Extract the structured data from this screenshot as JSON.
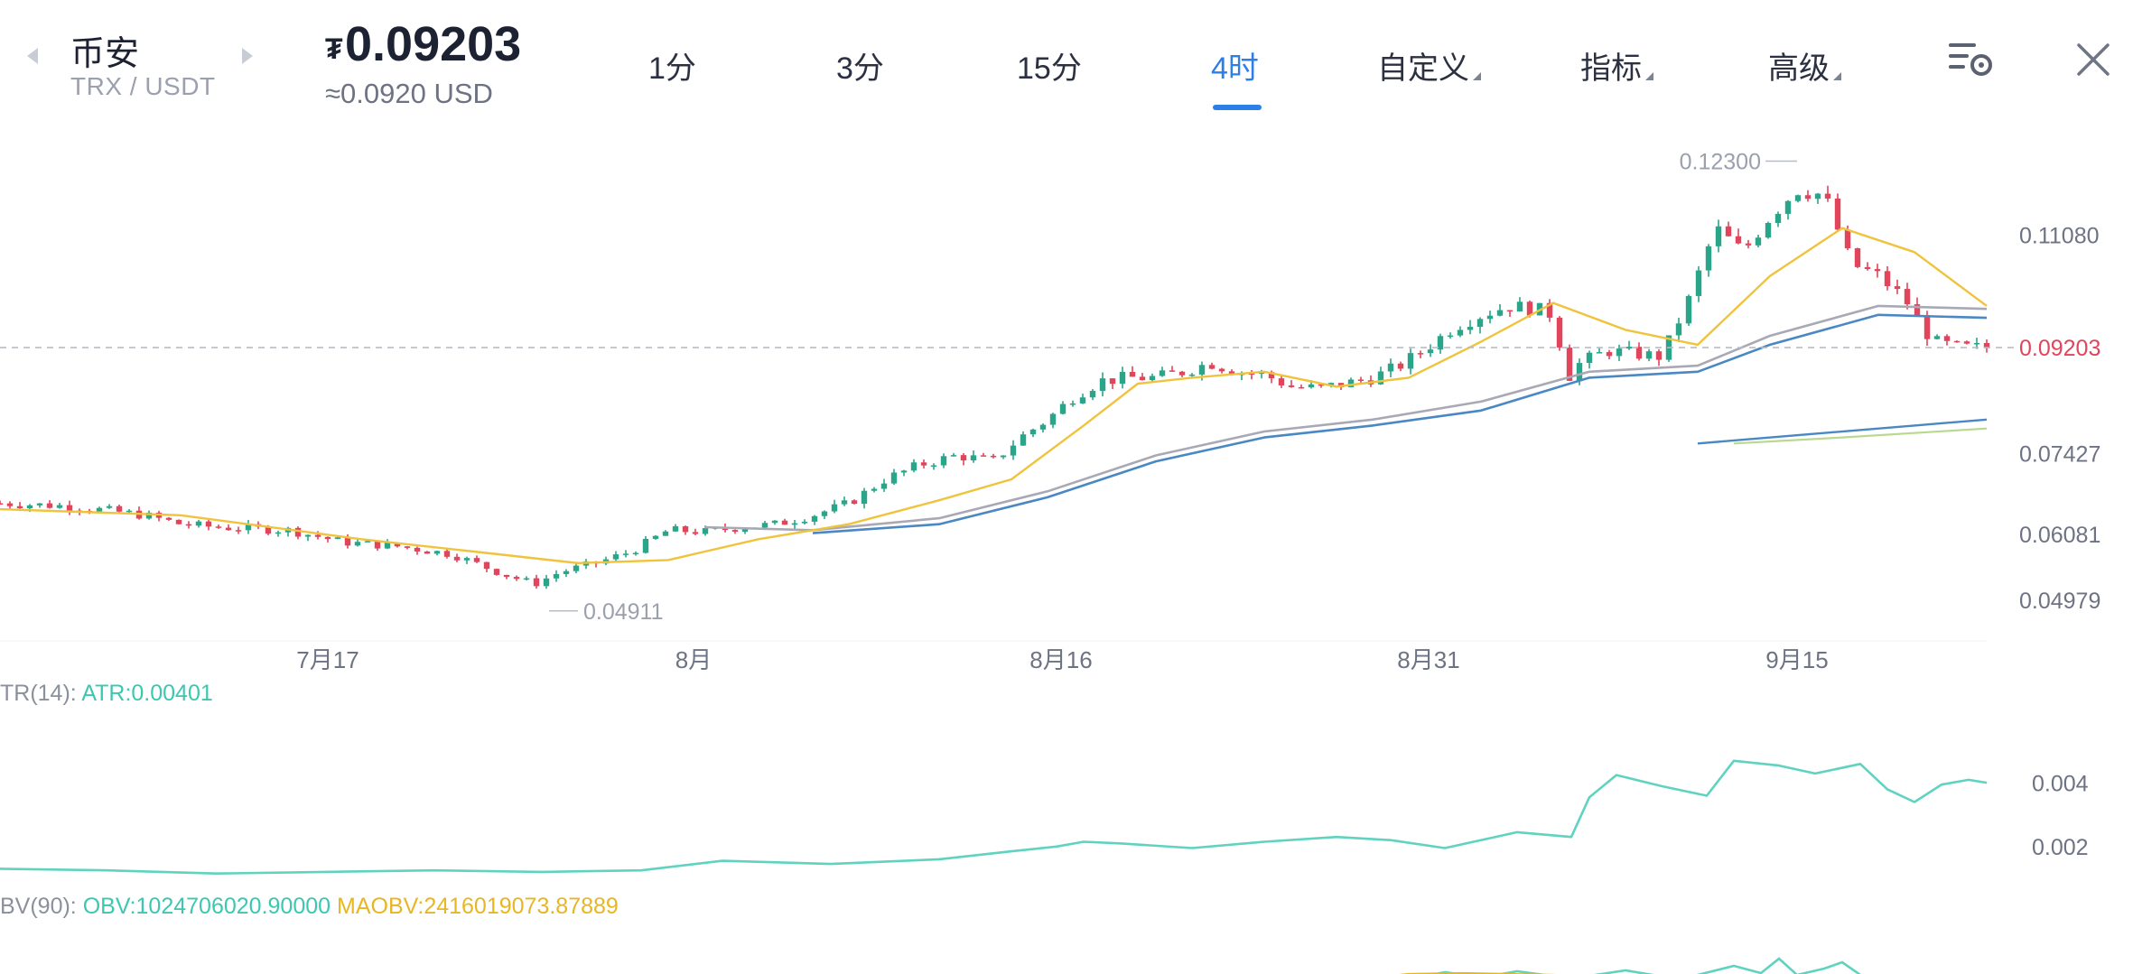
{
  "header": {
    "exchange_name": "币安",
    "pair": "TRX / USDT",
    "price_symbol": "₮",
    "price": "0.09203",
    "price_usd": "≈0.0920 USD"
  },
  "tabs": [
    {
      "label": "1分"
    },
    {
      "label": "3分"
    },
    {
      "label": "15分"
    },
    {
      "label": "4时",
      "active": true
    },
    {
      "label": "自定义"
    },
    {
      "label": "指标"
    },
    {
      "label": "高级"
    }
  ],
  "icons": {
    "left_arrow": "chevron-left-icon",
    "right_arrow": "chevron-right-icon",
    "settings": "chart-settings-icon",
    "close": "close-icon"
  },
  "colors": {
    "up": "#2ba58a",
    "down": "#e0455c",
    "ma_yellow": "#f0c33c",
    "ma_blue": "#4a88c4",
    "ma_gray": "#a9a9b6",
    "ma_green": "#b9d98f",
    "atr": "#5fd3c0",
    "maobv": "#e8b623",
    "accent": "#2d7fe8"
  },
  "chart_data": [
    {
      "type": "candlestick",
      "x_labels": [
        "7月17",
        "8月",
        "8月16",
        "8月31",
        "9月15"
      ],
      "y_tick_labels": [
        "0.11080",
        "0.07427",
        "0.06081",
        "0.04979"
      ],
      "last_price_label": "0.09203",
      "high_annotation": "0.12300",
      "low_annotation": "0.04911",
      "ylim": [
        0.046,
        0.126
      ],
      "price_path": [
        [
          0,
          0.066
        ],
        [
          40,
          0.0655
        ],
        [
          80,
          0.064
        ],
        [
          100,
          0.0625
        ],
        [
          120,
          0.062
        ],
        [
          160,
          0.0615
        ],
        [
          190,
          0.0595
        ],
        [
          220,
          0.0588
        ],
        [
          250,
          0.0575
        ],
        [
          280,
          0.054
        ],
        [
          296,
          0.0525
        ],
        [
          310,
          0.0545
        ],
        [
          330,
          0.056
        ],
        [
          350,
          0.058
        ],
        [
          370,
          0.0615
        ],
        [
          390,
          0.0612
        ],
        [
          410,
          0.062
        ],
        [
          430,
          0.0625
        ],
        [
          450,
          0.064
        ],
        [
          470,
          0.066
        ],
        [
          490,
          0.07
        ],
        [
          510,
          0.0725
        ],
        [
          530,
          0.074
        ],
        [
          550,
          0.073
        ],
        [
          565,
          0.077
        ],
        [
          580,
          0.08
        ],
        [
          595,
          0.084
        ],
        [
          610,
          0.0865
        ],
        [
          625,
          0.087
        ],
        [
          640,
          0.087
        ],
        [
          655,
          0.088
        ],
        [
          670,
          0.0895
        ],
        [
          685,
          0.088
        ],
        [
          700,
          0.0875
        ],
        [
          715,
          0.0855
        ],
        [
          730,
          0.0852
        ],
        [
          745,
          0.086
        ],
        [
          760,
          0.087
        ],
        [
          775,
          0.089
        ],
        [
          790,
          0.092
        ],
        [
          805,
          0.0955
        ],
        [
          820,
          0.0975
        ],
        [
          835,
          0.099
        ],
        [
          850,
          0.0985
        ],
        [
          860,
          0.0975
        ],
        [
          868,
          0.087
        ],
        [
          875,
          0.0895
        ],
        [
          890,
          0.0915
        ],
        [
          905,
          0.091
        ],
        [
          920,
          0.0905
        ],
        [
          935,
          0.1
        ],
        [
          950,
          0.112
        ],
        [
          965,
          0.108
        ],
        [
          980,
          0.114
        ],
        [
          995,
          0.1185
        ],
        [
          1010,
          0.1175
        ],
        [
          1025,
          0.106
        ],
        [
          1040,
          0.104
        ],
        [
          1055,
          0.1
        ],
        [
          1070,
          0.093
        ],
        [
          1085,
          0.092
        ],
        [
          1100,
          0.092
        ]
      ],
      "ma_yellow": [
        [
          0,
          0.065
        ],
        [
          100,
          0.064
        ],
        [
          200,
          0.06
        ],
        [
          260,
          0.058
        ],
        [
          320,
          0.056
        ],
        [
          370,
          0.0565
        ],
        [
          420,
          0.06
        ],
        [
          470,
          0.0625
        ],
        [
          520,
          0.0665
        ],
        [
          560,
          0.07
        ],
        [
          600,
          0.079
        ],
        [
          630,
          0.086
        ],
        [
          660,
          0.087
        ],
        [
          700,
          0.088
        ],
        [
          740,
          0.0855
        ],
        [
          780,
          0.087
        ],
        [
          820,
          0.093
        ],
        [
          860,
          0.0995
        ],
        [
          900,
          0.095
        ],
        [
          940,
          0.0925
        ],
        [
          980,
          0.104
        ],
        [
          1020,
          0.112
        ],
        [
          1060,
          0.108
        ],
        [
          1100,
          0.099
        ]
      ],
      "ma_gray": [
        [
          390,
          0.062
        ],
        [
          450,
          0.0615
        ],
        [
          520,
          0.0635
        ],
        [
          580,
          0.068
        ],
        [
          640,
          0.074
        ],
        [
          700,
          0.078
        ],
        [
          760,
          0.08
        ],
        [
          820,
          0.083
        ],
        [
          880,
          0.088
        ],
        [
          940,
          0.089
        ],
        [
          980,
          0.094
        ],
        [
          1040,
          0.099
        ],
        [
          1100,
          0.0985
        ]
      ],
      "ma_blue": [
        [
          450,
          0.061
        ],
        [
          520,
          0.0625
        ],
        [
          580,
          0.067
        ],
        [
          640,
          0.073
        ],
        [
          700,
          0.077
        ],
        [
          760,
          0.079
        ],
        [
          820,
          0.0815
        ],
        [
          880,
          0.087
        ],
        [
          940,
          0.088
        ],
        [
          980,
          0.0925
        ],
        [
          1040,
          0.0975
        ],
        [
          1100,
          0.097
        ]
      ],
      "ma_long_blue": [
        [
          940,
          0.076
        ],
        [
          1000,
          0.0775
        ],
        [
          1060,
          0.079
        ],
        [
          1100,
          0.08
        ]
      ],
      "ma_long_green": [
        [
          960,
          0.076
        ],
        [
          1020,
          0.077
        ],
        [
          1100,
          0.0785
        ]
      ]
    },
    {
      "type": "line",
      "label_prefix": "TR(14):",
      "label_value": "ATR:0.00401",
      "y_tick_labels": [
        "0.004",
        "0.002"
      ],
      "ylim": [
        0.0008,
        0.0062
      ],
      "values": [
        [
          0,
          0.0013
        ],
        [
          60,
          0.00125
        ],
        [
          120,
          0.00115
        ],
        [
          180,
          0.0012
        ],
        [
          240,
          0.00125
        ],
        [
          300,
          0.0012
        ],
        [
          355,
          0.00125
        ],
        [
          400,
          0.00155
        ],
        [
          460,
          0.00145
        ],
        [
          520,
          0.0016
        ],
        [
          560,
          0.00185
        ],
        [
          585,
          0.002
        ],
        [
          600,
          0.00215
        ],
        [
          620,
          0.0021
        ],
        [
          660,
          0.00195
        ],
        [
          700,
          0.00215
        ],
        [
          740,
          0.0023
        ],
        [
          770,
          0.0022
        ],
        [
          800,
          0.00195
        ],
        [
          840,
          0.00245
        ],
        [
          870,
          0.0023
        ],
        [
          880,
          0.00355
        ],
        [
          895,
          0.00425
        ],
        [
          920,
          0.0039
        ],
        [
          945,
          0.0036
        ],
        [
          960,
          0.0047
        ],
        [
          985,
          0.00455
        ],
        [
          1005,
          0.0043
        ],
        [
          1030,
          0.0046
        ],
        [
          1045,
          0.0038
        ],
        [
          1060,
          0.0034
        ],
        [
          1075,
          0.00395
        ],
        [
          1090,
          0.0041
        ],
        [
          1100,
          0.00401
        ]
      ]
    },
    {
      "type": "line",
      "label_prefix": "BV(90):",
      "label_obv": "OBV:1024706020.90000",
      "label_maobv": "MAOBV:2416019073.87889"
    }
  ]
}
